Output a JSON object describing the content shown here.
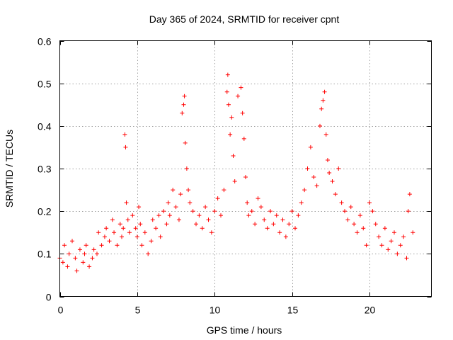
{
  "chart_data": {
    "type": "scatter",
    "title": "Day 365 of 2024, SRMTID for receiver cpnt",
    "xlabel": "GPS time / hours",
    "ylabel": "SRMTID / TECUs",
    "xlim": [
      0,
      24
    ],
    "ylim": [
      0,
      0.6
    ],
    "x_ticks": [
      0,
      5,
      10,
      15,
      20
    ],
    "x_tick_labels": [
      "0",
      "5",
      "10",
      "15",
      "20"
    ],
    "y_ticks": [
      0,
      0.1,
      0.2,
      0.3,
      0.4,
      0.5,
      0.6
    ],
    "y_tick_labels": [
      "0",
      "0.1",
      "0.2",
      "0.3",
      "0.4",
      "0.5",
      "0.6"
    ],
    "grid": true,
    "marker": "plus",
    "color": "#ff0000",
    "series": [
      {
        "name": "SRMTID",
        "x": [
          0.0,
          0.2,
          0.3,
          0.5,
          0.6,
          0.8,
          1.0,
          1.1,
          1.3,
          1.5,
          1.6,
          1.7,
          1.9,
          2.1,
          2.2,
          2.4,
          2.5,
          2.7,
          2.9,
          3.0,
          3.2,
          3.4,
          3.5,
          3.7,
          3.9,
          4.0,
          4.1,
          4.2,
          4.25,
          4.3,
          4.4,
          4.5,
          4.7,
          4.9,
          5.0,
          5.1,
          5.2,
          5.3,
          5.5,
          5.7,
          5.9,
          6.0,
          6.2,
          6.4,
          6.5,
          6.7,
          6.9,
          7.0,
          7.1,
          7.3,
          7.5,
          7.7,
          7.8,
          7.9,
          8.0,
          8.05,
          8.1,
          8.2,
          8.3,
          8.4,
          8.6,
          8.8,
          9.0,
          9.2,
          9.4,
          9.6,
          9.8,
          10.0,
          10.2,
          10.4,
          10.6,
          10.8,
          10.85,
          10.9,
          11.0,
          11.1,
          11.2,
          11.3,
          11.5,
          11.7,
          11.8,
          11.9,
          12.0,
          12.1,
          12.2,
          12.4,
          12.6,
          12.8,
          13.0,
          13.2,
          13.4,
          13.6,
          13.8,
          14.0,
          14.2,
          14.4,
          14.6,
          14.8,
          15.0,
          15.2,
          15.4,
          15.6,
          15.8,
          16.0,
          16.2,
          16.4,
          16.6,
          16.8,
          16.9,
          17.0,
          17.1,
          17.2,
          17.3,
          17.4,
          17.6,
          17.8,
          18.0,
          18.2,
          18.4,
          18.6,
          18.8,
          19.0,
          19.2,
          19.4,
          19.6,
          19.8,
          20.0,
          20.2,
          20.4,
          20.6,
          20.8,
          21.0,
          21.2,
          21.4,
          21.6,
          21.8,
          22.0,
          22.2,
          22.4,
          22.5,
          22.6,
          22.8
        ],
        "y": [
          0.09,
          0.08,
          0.12,
          0.07,
          0.1,
          0.13,
          0.09,
          0.06,
          0.11,
          0.08,
          0.1,
          0.12,
          0.07,
          0.09,
          0.11,
          0.1,
          0.15,
          0.12,
          0.14,
          0.16,
          0.13,
          0.18,
          0.15,
          0.12,
          0.17,
          0.14,
          0.16,
          0.38,
          0.35,
          0.22,
          0.18,
          0.15,
          0.19,
          0.16,
          0.14,
          0.21,
          0.17,
          0.12,
          0.15,
          0.1,
          0.13,
          0.18,
          0.16,
          0.19,
          0.14,
          0.2,
          0.17,
          0.22,
          0.19,
          0.25,
          0.21,
          0.18,
          0.24,
          0.43,
          0.45,
          0.47,
          0.36,
          0.3,
          0.25,
          0.22,
          0.2,
          0.17,
          0.19,
          0.16,
          0.21,
          0.18,
          0.15,
          0.2,
          0.23,
          0.19,
          0.25,
          0.48,
          0.52,
          0.45,
          0.38,
          0.42,
          0.33,
          0.27,
          0.47,
          0.49,
          0.43,
          0.37,
          0.28,
          0.22,
          0.19,
          0.2,
          0.17,
          0.23,
          0.21,
          0.18,
          0.16,
          0.2,
          0.17,
          0.19,
          0.15,
          0.18,
          0.14,
          0.17,
          0.2,
          0.16,
          0.19,
          0.22,
          0.25,
          0.3,
          0.35,
          0.28,
          0.26,
          0.4,
          0.44,
          0.46,
          0.48,
          0.38,
          0.32,
          0.29,
          0.27,
          0.24,
          0.3,
          0.22,
          0.2,
          0.18,
          0.21,
          0.17,
          0.15,
          0.19,
          0.16,
          0.12,
          0.22,
          0.2,
          0.17,
          0.14,
          0.12,
          0.16,
          0.11,
          0.13,
          0.15,
          0.1,
          0.12,
          0.14,
          0.09,
          0.2,
          0.24,
          0.15
        ]
      }
    ]
  }
}
